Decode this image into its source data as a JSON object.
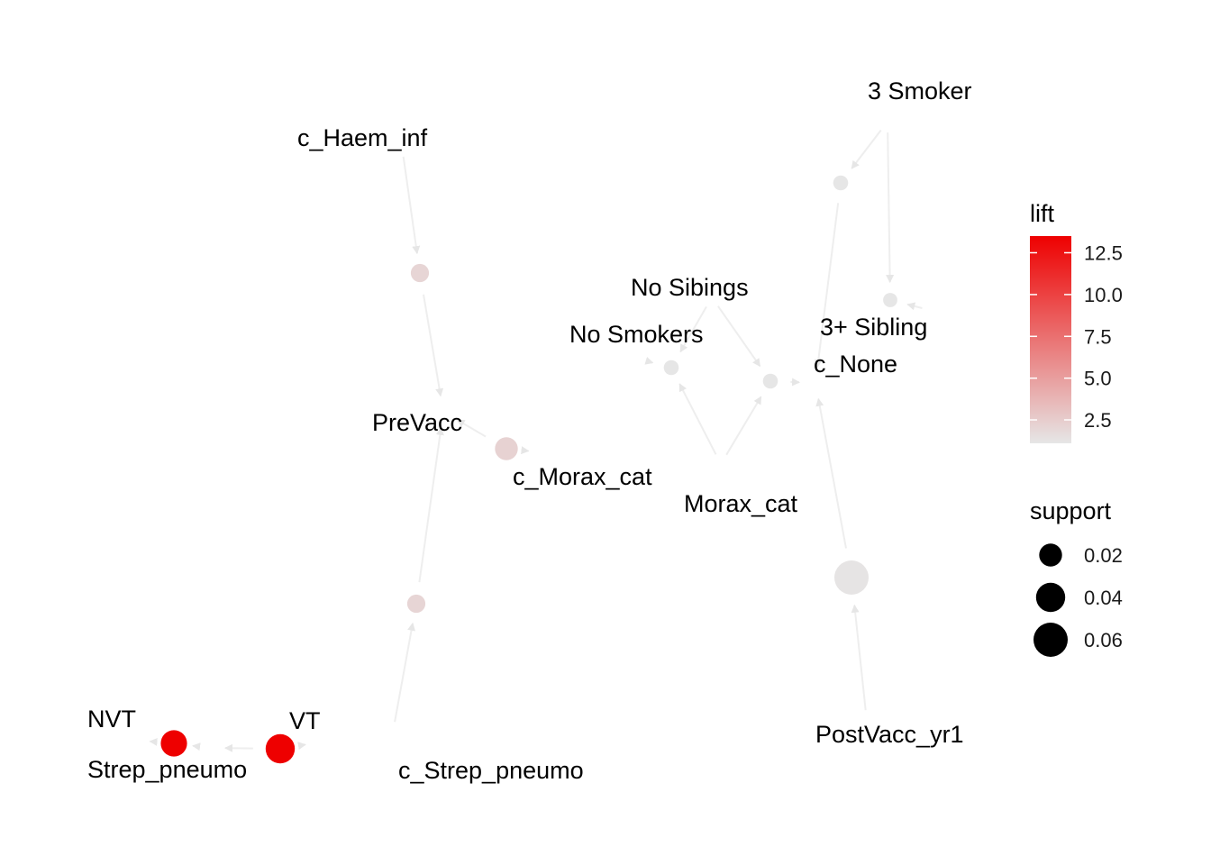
{
  "graph": {
    "nodes": [
      {
        "id": "c_Haem_inf",
        "label": "c_Haem_inf",
        "kind": "item"
      },
      {
        "id": "PreVacc",
        "label": "PreVacc",
        "kind": "item"
      },
      {
        "id": "c_Morax_cat",
        "label": "c_Morax_cat",
        "kind": "item"
      },
      {
        "id": "c_Strep_pneumo",
        "label": "c_Strep_pneumo",
        "kind": "item"
      },
      {
        "id": "NVT",
        "label": "NVT",
        "kind": "item"
      },
      {
        "id": "Strep_pneumo",
        "label": "Strep_pneumo",
        "kind": "item"
      },
      {
        "id": "VT",
        "label": "VT",
        "kind": "item"
      },
      {
        "id": "3_Smoker",
        "label": "3 Smoker",
        "kind": "item"
      },
      {
        "id": "No_Sibings",
        "label": "No Sibings",
        "kind": "item"
      },
      {
        "id": "No_Smokers",
        "label": "No Smokers",
        "kind": "item"
      },
      {
        "id": "3plus_Sibling",
        "label": "3+ Sibling",
        "kind": "item"
      },
      {
        "id": "c_None",
        "label": "c_None",
        "kind": "item"
      },
      {
        "id": "Morax_cat",
        "label": "Morax_cat",
        "kind": "item"
      },
      {
        "id": "PostVacc_yr1",
        "label": "PostVacc_yr1",
        "kind": "item"
      },
      {
        "id": "r_haem",
        "kind": "rule",
        "lift": 2.0,
        "support": 0.01
      },
      {
        "id": "r_strep",
        "kind": "rule",
        "lift": 2.0,
        "support": 0.01
      },
      {
        "id": "r_morax",
        "kind": "rule",
        "lift": 2.2,
        "support": 0.02
      },
      {
        "id": "r_nvt",
        "kind": "rule",
        "lift": 13.5,
        "support": 0.03
      },
      {
        "id": "r_vt",
        "kind": "rule",
        "lift": 13.5,
        "support": 0.04
      },
      {
        "id": "r_smoker_top",
        "kind": "rule",
        "lift": 1.1,
        "support": 0.005
      },
      {
        "id": "r_sibling",
        "kind": "rule",
        "lift": 1.1,
        "support": 0.004
      },
      {
        "id": "r_nosmokers",
        "kind": "rule",
        "lift": 1.1,
        "support": 0.005
      },
      {
        "id": "r_nosibings",
        "kind": "rule",
        "lift": 1.1,
        "support": 0.005
      },
      {
        "id": "r_postvacc",
        "kind": "rule",
        "lift": 1.2,
        "support": 0.06
      }
    ],
    "edges": [
      {
        "from": "c_Haem_inf",
        "to": "r_haem"
      },
      {
        "from": "r_haem",
        "to": "PreVacc"
      },
      {
        "from": "c_Strep_pneumo",
        "to": "r_strep"
      },
      {
        "from": "r_strep",
        "to": "PreVacc"
      },
      {
        "from": "c_Morax_cat",
        "to": "r_morax"
      },
      {
        "from": "r_morax",
        "to": "PreVacc"
      },
      {
        "from": "NVT",
        "to": "r_nvt"
      },
      {
        "from": "r_nvt",
        "to": "Strep_pneumo"
      },
      {
        "from": "VT",
        "to": "r_vt"
      },
      {
        "from": "r_vt",
        "to": "Strep_pneumo"
      },
      {
        "from": "3_Smoker",
        "to": "r_smoker_top"
      },
      {
        "from": "r_smoker_top",
        "to": "c_None"
      },
      {
        "from": "3_Smoker",
        "to": "r_sibling"
      },
      {
        "from": "3plus_Sibling",
        "to": "r_sibling"
      },
      {
        "from": "No_Sibings",
        "to": "r_nosmokers"
      },
      {
        "from": "r_nosmokers",
        "to": "No_Smokers"
      },
      {
        "from": "Morax_cat",
        "to": "r_nosmokers"
      },
      {
        "from": "No_Sibings",
        "to": "r_nosibings"
      },
      {
        "from": "Morax_cat",
        "to": "r_nosibings"
      },
      {
        "from": "r_nosibings",
        "to": "c_None"
      },
      {
        "from": "PostVacc_yr1",
        "to": "r_postvacc"
      },
      {
        "from": "r_postvacc",
        "to": "c_None"
      }
    ]
  },
  "legend": {
    "lift": {
      "title": "lift",
      "min": 1.1,
      "max": 13.5,
      "low_color": "#e6e6e6",
      "high_color": "#ee0000",
      "ticks": [
        {
          "value": 2.5,
          "label": "2.5"
        },
        {
          "value": 5.0,
          "label": "5.0"
        },
        {
          "value": 7.5,
          "label": "7.5"
        },
        {
          "value": 10.0,
          "label": "10.0"
        },
        {
          "value": 12.5,
          "label": "12.5"
        }
      ]
    },
    "support": {
      "title": "support",
      "color": "#000000",
      "entries": [
        {
          "value": 0.02,
          "label": "0.02"
        },
        {
          "value": 0.04,
          "label": "0.04"
        },
        {
          "value": 0.06,
          "label": "0.06"
        }
      ]
    }
  },
  "style": {
    "edge_color": "#eeeeee",
    "arrow_color": "#e6e6e6"
  }
}
